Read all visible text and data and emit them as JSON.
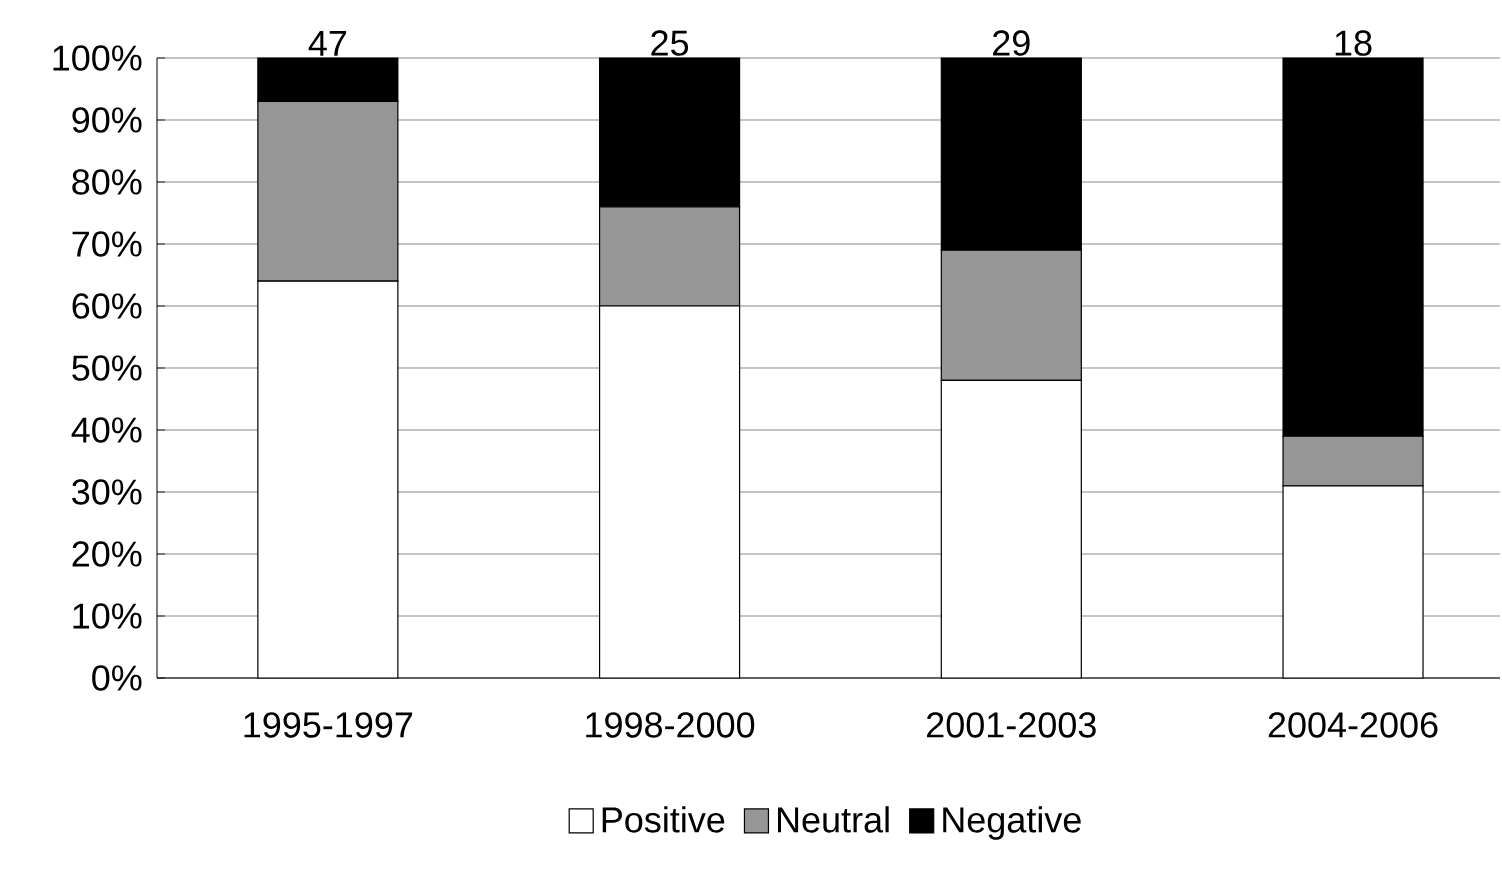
{
  "chart_data": {
    "type": "bar",
    "stacked": true,
    "categories": [
      "1995-1997",
      "1998-2000",
      "2001-2003",
      "2004-2006"
    ],
    "series": [
      {
        "name": "Positive",
        "color": "#ffffff",
        "values": [
          64,
          60,
          48,
          31
        ]
      },
      {
        "name": "Neutral",
        "color": "#969696",
        "values": [
          29,
          16,
          21,
          8
        ]
      },
      {
        "name": "Negative",
        "color": "#000000",
        "values": [
          7,
          24,
          31,
          61
        ]
      }
    ],
    "annotations": [
      {
        "text": "47",
        "x": "1995-1997",
        "y": 100
      },
      {
        "text": "25",
        "x": "1998-2000",
        "y": 100
      },
      {
        "text": "29",
        "x": "2001-2003",
        "y": 100
      },
      {
        "text": "18",
        "x": "2004-2006",
        "y": 100
      }
    ],
    "ylim": [
      0,
      100
    ],
    "yticks": [
      {
        "value": 0,
        "label": "0%"
      },
      {
        "value": 10,
        "label": "10%"
      },
      {
        "value": 20,
        "label": "20%"
      },
      {
        "value": 30,
        "label": "30%"
      },
      {
        "value": 40,
        "label": "40%"
      },
      {
        "value": 50,
        "label": "50%"
      },
      {
        "value": 60,
        "label": "60%"
      },
      {
        "value": 70,
        "label": "70%"
      },
      {
        "value": 80,
        "label": "80%"
      },
      {
        "value": 90,
        "label": "90%"
      },
      {
        "value": 100,
        "label": "100%"
      }
    ],
    "grid": "y",
    "legend": "bottom"
  }
}
